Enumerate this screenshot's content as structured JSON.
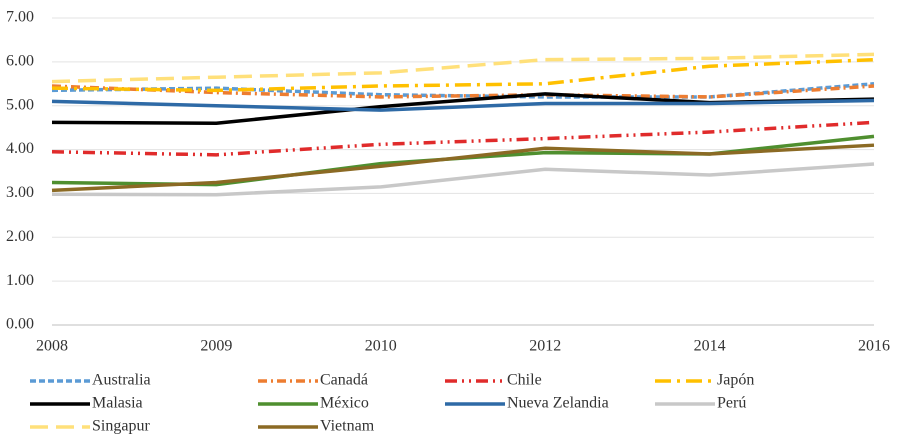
{
  "chart_data": {
    "type": "line",
    "categories": [
      "2008",
      "2009",
      "2010",
      "2012",
      "2014",
      "2016"
    ],
    "ylim": [
      0,
      7
    ],
    "yticks": [
      {
        "value": 0,
        "label": "0.00"
      },
      {
        "value": 1,
        "label": "1.00"
      },
      {
        "value": 2,
        "label": "2.00"
      },
      {
        "value": 3,
        "label": "3.00"
      },
      {
        "value": 4,
        "label": "4.00"
      },
      {
        "value": 5,
        "label": "5.00"
      },
      {
        "value": 6,
        "label": "6.00"
      },
      {
        "value": 7,
        "label": "7.00"
      }
    ],
    "grid": true,
    "legend": "bottom",
    "series": [
      {
        "name": "Australia",
        "color": "#5b9bd5",
        "dash": "6,3",
        "values": [
          5.35,
          5.4,
          5.25,
          5.2,
          5.2,
          5.5
        ]
      },
      {
        "name": "Canadá",
        "color": "#ed7d31",
        "dash": "9,4,2,4",
        "values": [
          5.45,
          5.3,
          5.2,
          5.25,
          5.2,
          5.45
        ]
      },
      {
        "name": "Chile",
        "color": "#e02b2b",
        "dash": "12,5,2,5,2,5",
        "values": [
          3.95,
          3.88,
          4.12,
          4.25,
          4.4,
          4.62
        ]
      },
      {
        "name": "Japón",
        "color": "#ffc000",
        "dash": "16,6,3,6",
        "values": [
          5.4,
          5.35,
          5.45,
          5.5,
          5.9,
          6.05
        ]
      },
      {
        "name": "Malasia",
        "color": "#000000",
        "dash": "none",
        "values": [
          4.62,
          4.6,
          4.98,
          5.27,
          5.07,
          5.15
        ]
      },
      {
        "name": "México",
        "color": "#4f8f2f",
        "dash": "none",
        "values": [
          3.25,
          3.2,
          3.68,
          3.93,
          3.9,
          4.3
        ]
      },
      {
        "name": "Nueva Zelandia",
        "color": "#2e6aa6",
        "dash": "none",
        "values": [
          5.1,
          5.0,
          4.9,
          5.05,
          5.05,
          5.12
        ]
      },
      {
        "name": "Perú",
        "color": "#c8c8c8",
        "dash": "none",
        "values": [
          2.98,
          2.97,
          3.15,
          3.55,
          3.42,
          3.67
        ]
      },
      {
        "name": "Singapur",
        "color": "#ffe07a",
        "dash": "18,8",
        "values": [
          5.55,
          5.65,
          5.75,
          6.05,
          6.08,
          6.17
        ]
      },
      {
        "name": "Vietnam",
        "color": "#8b6a24",
        "dash": "none",
        "values": [
          3.07,
          3.25,
          3.62,
          4.03,
          3.9,
          4.1
        ]
      }
    ]
  }
}
